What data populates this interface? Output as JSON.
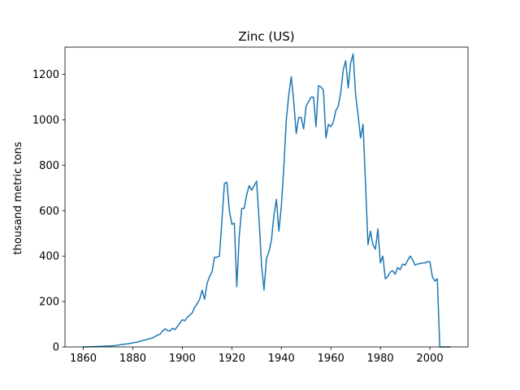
{
  "chart_data": {
    "type": "line",
    "title": "Zinc (US)",
    "xlabel": "",
    "ylabel": "thousand metric tons",
    "xlim": [
      1852.6,
      2015.4
    ],
    "ylim": [
      0,
      1320
    ],
    "xticks": [
      1860,
      1880,
      1900,
      1920,
      1940,
      1960,
      1980,
      2000
    ],
    "yticks": [
      0,
      200,
      400,
      600,
      800,
      1000,
      1200
    ],
    "grid": false,
    "color": "#1f77b4",
    "series": [
      {
        "x": [
          1860,
          1865,
          1870,
          1873,
          1875,
          1878,
          1880,
          1882,
          1884,
          1886,
          1888,
          1890,
          1891,
          1892,
          1893,
          1894,
          1895,
          1896,
          1897,
          1898,
          1899,
          1900,
          1901,
          1902,
          1903,
          1904,
          1905,
          1906,
          1907,
          1908,
          1909,
          1910,
          1911,
          1912,
          1913,
          1914,
          1915,
          1916,
          1917,
          1918,
          1919,
          1920,
          1921,
          1922,
          1923,
          1924,
          1925,
          1926,
          1927,
          1928,
          1929,
          1930,
          1931,
          1932,
          1933,
          1934,
          1935,
          1936,
          1937,
          1938,
          1939,
          1940,
          1941,
          1942,
          1943,
          1944,
          1945,
          1946,
          1947,
          1948,
          1949,
          1950,
          1951,
          1952,
          1953,
          1954,
          1955,
          1956,
          1957,
          1958,
          1959,
          1960,
          1961,
          1962,
          1963,
          1964,
          1965,
          1966,
          1967,
          1968,
          1969,
          1970,
          1971,
          1972,
          1973,
          1974,
          1975,
          1976,
          1977,
          1978,
          1979,
          1980,
          1981,
          1982,
          1983,
          1984,
          1985,
          1986,
          1987,
          1988,
          1989,
          1990,
          1991,
          1992,
          1993,
          1994,
          1995,
          1996,
          1997,
          1998,
          1999,
          2000,
          2001,
          2002,
          2003,
          2004,
          2005,
          2006,
          2007,
          2008
        ],
        "y": [
          0,
          2,
          4,
          6,
          10,
          14,
          18,
          22,
          28,
          34,
          40,
          52,
          56,
          70,
          80,
          72,
          70,
          82,
          76,
          90,
          105,
          120,
          115,
          130,
          140,
          150,
          175,
          190,
          210,
          250,
          210,
          280,
          310,
          330,
          395,
          395,
          400,
          560,
          720,
          725,
          600,
          540,
          545,
          265,
          490,
          610,
          610,
          670,
          710,
          690,
          710,
          730,
          560,
          360,
          250,
          390,
          420,
          470,
          580,
          650,
          510,
          620,
          790,
          1000,
          1110,
          1190,
          1080,
          940,
          1010,
          1010,
          960,
          1060,
          1080,
          1100,
          1100,
          970,
          1150,
          1145,
          1130,
          920,
          980,
          970,
          990,
          1040,
          1060,
          1120,
          1220,
          1260,
          1140,
          1250,
          1290,
          1110,
          1020,
          920,
          980,
          720,
          450,
          510,
          450,
          430,
          520,
          370,
          400,
          300,
          310,
          330,
          335,
          320,
          350,
          340,
          365,
          360,
          380,
          400,
          385,
          360,
          365,
          367,
          370,
          370,
          375,
          375,
          310,
          290,
          300,
          0,
          0,
          0,
          0,
          0
        ]
      }
    ]
  }
}
